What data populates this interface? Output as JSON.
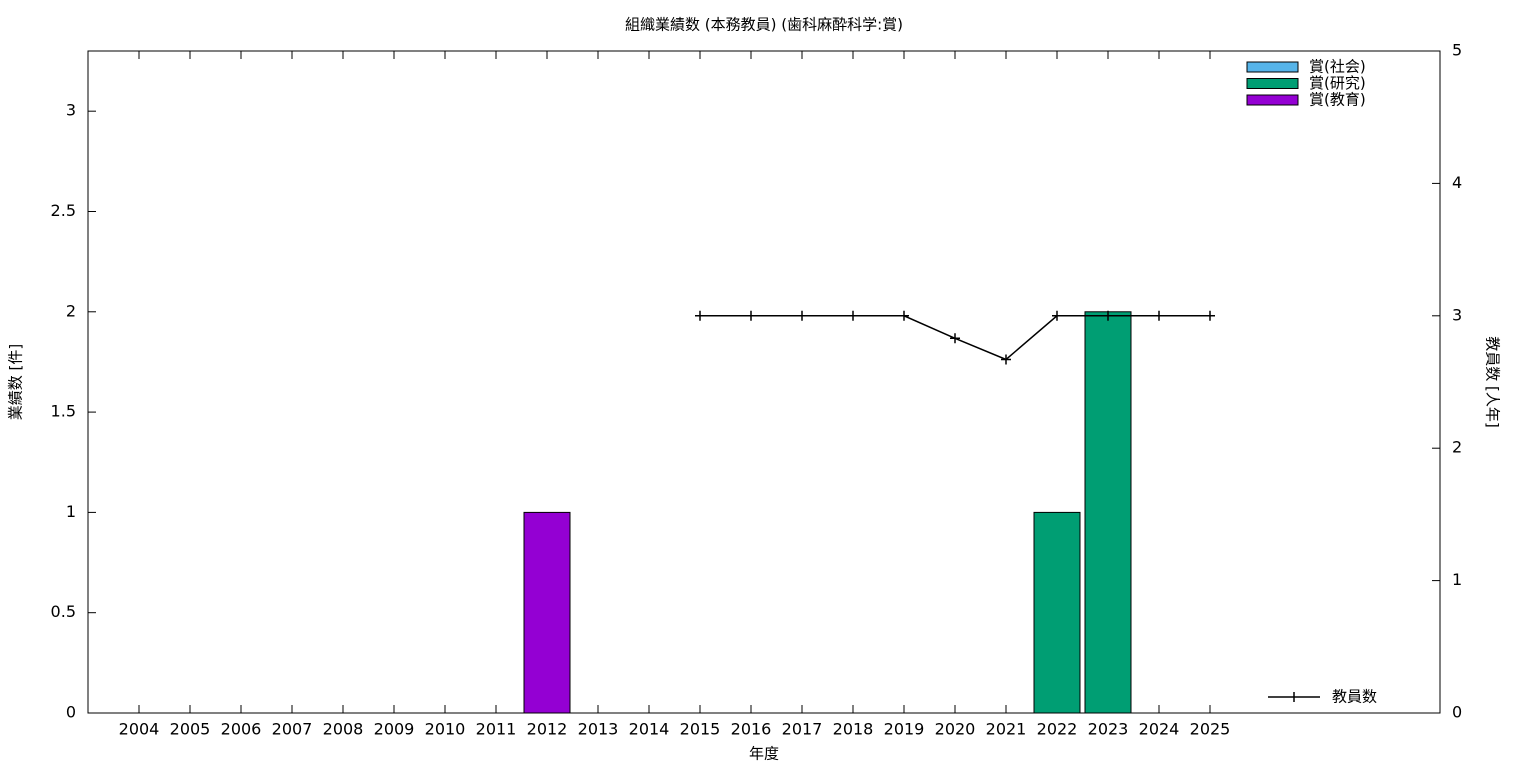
{
  "chart_data": {
    "type": "bar",
    "title": "組織業績数 (本務教員) (歯科麻酔科学:賞)",
    "xlabel": "年度",
    "ylabel": "業績数 [件]",
    "y2label": "教員数 [人年]",
    "categories": [
      "2004",
      "2005",
      "2006",
      "2007",
      "2008",
      "2009",
      "2010",
      "2011",
      "2012",
      "2013",
      "2014",
      "2015",
      "2016",
      "2017",
      "2018",
      "2019",
      "2020",
      "2021",
      "2022",
      "2023",
      "2024",
      "2025"
    ],
    "stacked": true,
    "series": [
      {
        "name": "賞(社会)",
        "color": "#56b4e9",
        "values": [
          0,
          0,
          0,
          0,
          0,
          0,
          0,
          0,
          0,
          0,
          0,
          0,
          0,
          0,
          0,
          0,
          0,
          0,
          0,
          0,
          0,
          0
        ]
      },
      {
        "name": "賞(研究)",
        "color": "#009e73",
        "values": [
          0,
          0,
          0,
          0,
          0,
          0,
          0,
          0,
          0,
          0,
          0,
          0,
          0,
          0,
          0,
          0,
          0,
          0,
          1,
          2,
          0,
          0
        ]
      },
      {
        "name": "賞(教育)",
        "color": "#9400d3",
        "values": [
          0,
          0,
          0,
          0,
          0,
          0,
          0,
          0,
          1,
          0,
          0,
          0,
          0,
          0,
          0,
          0,
          0,
          0,
          0,
          0,
          0,
          0
        ]
      },
      {
        "name": "教員数",
        "type": "line",
        "axis": "y2",
        "color": "#000000",
        "values": [
          null,
          null,
          null,
          null,
          null,
          null,
          null,
          null,
          null,
          null,
          null,
          3,
          3,
          3,
          3,
          3,
          2.83,
          2.67,
          3,
          3,
          3,
          3
        ]
      }
    ],
    "ylim": [
      0,
      3.3
    ],
    "yticks": [
      0,
      0.5,
      1,
      1.5,
      2,
      2.5,
      3
    ],
    "y2lim": [
      0,
      5
    ],
    "y2ticks": [
      0,
      1,
      2,
      3,
      4,
      5
    ],
    "grid": false,
    "legend": "top-right"
  }
}
